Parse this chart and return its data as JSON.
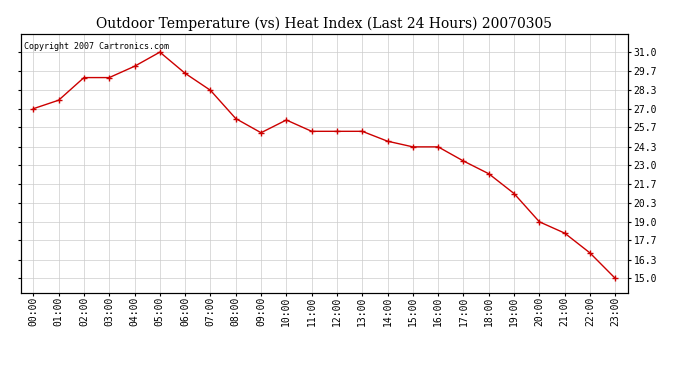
{
  "title": "Outdoor Temperature (vs) Heat Index (Last 24 Hours) 20070305",
  "copyright_text": "Copyright 2007 Cartronics.com",
  "x_labels": [
    "00:00",
    "01:00",
    "02:00",
    "03:00",
    "04:00",
    "05:00",
    "06:00",
    "07:00",
    "08:00",
    "09:00",
    "10:00",
    "11:00",
    "12:00",
    "13:00",
    "14:00",
    "15:00",
    "16:00",
    "17:00",
    "18:00",
    "19:00",
    "20:00",
    "21:00",
    "22:00",
    "23:00"
  ],
  "y_values": [
    27.0,
    27.6,
    29.2,
    29.2,
    30.0,
    31.0,
    29.5,
    28.3,
    26.3,
    25.3,
    26.2,
    25.4,
    25.4,
    25.4,
    24.7,
    24.3,
    24.3,
    23.3,
    22.4,
    21.0,
    19.0,
    18.2,
    16.8,
    15.0
  ],
  "line_color": "#cc0000",
  "marker_color": "#cc0000",
  "bg_color": "#ffffff",
  "plot_bg_color": "#ffffff",
  "grid_color": "#cccccc",
  "title_fontsize": 10,
  "tick_fontsize": 7,
  "copyright_fontsize": 6,
  "ylim_min": 14.0,
  "ylim_max": 32.3,
  "ytick_values": [
    15.0,
    16.3,
    17.7,
    19.0,
    20.3,
    21.7,
    23.0,
    24.3,
    25.7,
    27.0,
    28.3,
    29.7,
    31.0
  ],
  "ytick_labels": [
    "15.0",
    "16.3",
    "17.7",
    "19.0",
    "20.3",
    "21.7",
    "23.0",
    "24.3",
    "25.7",
    "27.0",
    "28.3",
    "29.7",
    "31.0"
  ]
}
